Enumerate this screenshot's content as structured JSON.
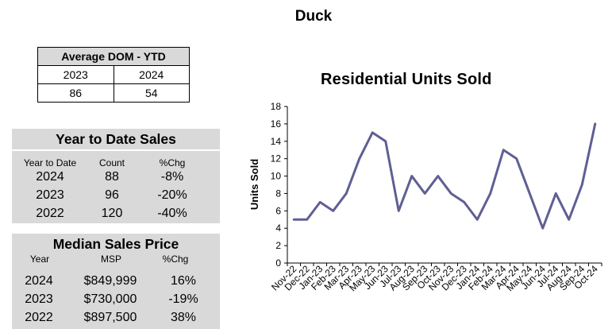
{
  "page": {
    "title": "Duck"
  },
  "dom": {
    "header": "Average DOM - YTD",
    "years": [
      "2023",
      "2024"
    ],
    "values": [
      "86",
      "54"
    ]
  },
  "ytd": {
    "title": "Year to Date Sales",
    "cols": [
      "Year to Date",
      "Count",
      "%Chg"
    ],
    "rows": [
      {
        "year": "2024",
        "count": "88",
        "chg": "-8%"
      },
      {
        "year": "2023",
        "count": "96",
        "chg": "-20%"
      },
      {
        "year": "2022",
        "count": "120",
        "chg": "-40%"
      }
    ]
  },
  "msp": {
    "title": "Median Sales Price",
    "cols": [
      "Year",
      "MSP",
      "%Chg"
    ],
    "rows": [
      {
        "year": "2024",
        "price": "$849,999",
        "chg": "16%"
      },
      {
        "year": "2023",
        "price": "$730,000",
        "chg": "-19%"
      },
      {
        "year": "2022",
        "price": "$897,500",
        "chg": "38%"
      }
    ]
  },
  "chart_data": {
    "type": "line",
    "title": "Residential Units Sold",
    "ylabel": "Units Sold",
    "xlabel": "",
    "ylim": [
      0,
      18
    ],
    "yticks": [
      "0",
      "2",
      "4",
      "6",
      "8",
      "10",
      "12",
      "14",
      "16",
      "18"
    ],
    "line_color": "#5f5f94",
    "categories": [
      "Nov-22",
      "Dec-22",
      "Jan-23",
      "Feb-23",
      "Mar-23",
      "Apr-23",
      "May-23",
      "Jun-23",
      "Jul-23",
      "Aug-23",
      "Sep-23",
      "Oct-23",
      "Nov-23",
      "Dec-23",
      "Jan-24",
      "Feb-24",
      "Mar-24",
      "Apr-24",
      "May-24",
      "Jun-24",
      "Jul-24",
      "Aug-24",
      "Sep-24",
      "Oct-24"
    ],
    "values": [
      5,
      5,
      7,
      6,
      8,
      12,
      15,
      14,
      6,
      10,
      8,
      10,
      8,
      7,
      5,
      8,
      13,
      12,
      8,
      4,
      8,
      5,
      9,
      16
    ]
  }
}
